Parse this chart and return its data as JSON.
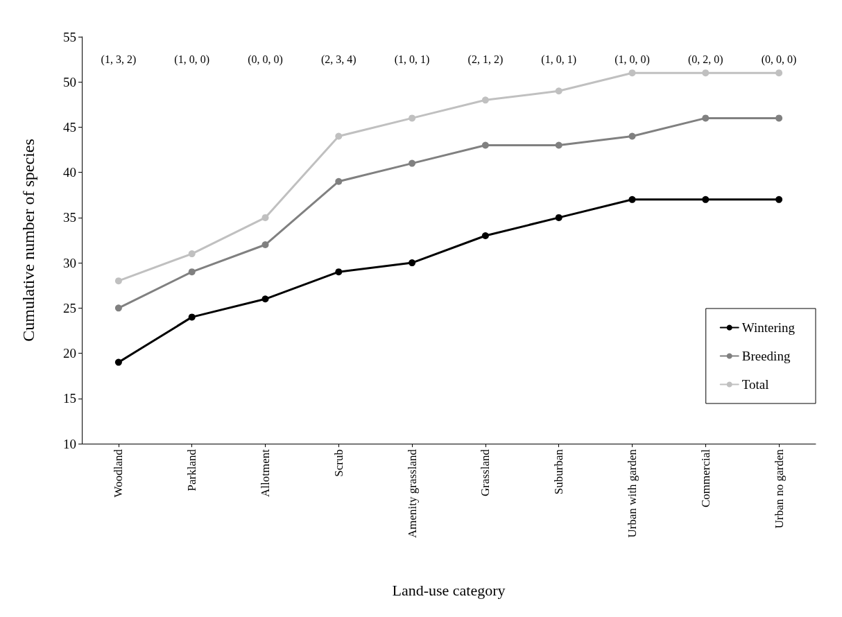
{
  "chart_data": {
    "type": "line",
    "xlabel": "Land-use category",
    "ylabel": "Cumulative number of species",
    "categories": [
      "Woodland",
      "Parkland",
      "Allotment",
      "Scrub",
      "Amenity grassland",
      "Grassland",
      "Suburban",
      "Urban with garden",
      "Commercial",
      "Urban no garden"
    ],
    "series": [
      {
        "name": "Wintering",
        "color": "#000000",
        "values": [
          19,
          24,
          26,
          29,
          30,
          33,
          35,
          37,
          37,
          37
        ]
      },
      {
        "name": "Breeding",
        "color": "#808080",
        "values": [
          25,
          29,
          32,
          39,
          41,
          43,
          43,
          44,
          46,
          46
        ]
      },
      {
        "name": "Total",
        "color": "#c0c0c0",
        "values": [
          28,
          31,
          35,
          44,
          46,
          48,
          49,
          51,
          51,
          51
        ]
      }
    ],
    "ylim": [
      10,
      55
    ],
    "yticks": [
      10,
      15,
      20,
      25,
      30,
      35,
      40,
      45,
      50,
      55
    ],
    "annotations": [
      "(1, 3, 2)",
      "(1, 0, 0)",
      "(0, 0, 0)",
      "(2, 3, 4)",
      "(1, 0, 1)",
      "(2, 1, 2)",
      "(1, 0, 1)",
      "(1, 0, 0)",
      "(0, 2, 0)",
      "(0, 0, 0)"
    ],
    "grid": false,
    "legend": "bottom right",
    "marker": "circle",
    "line_style": "solid"
  }
}
